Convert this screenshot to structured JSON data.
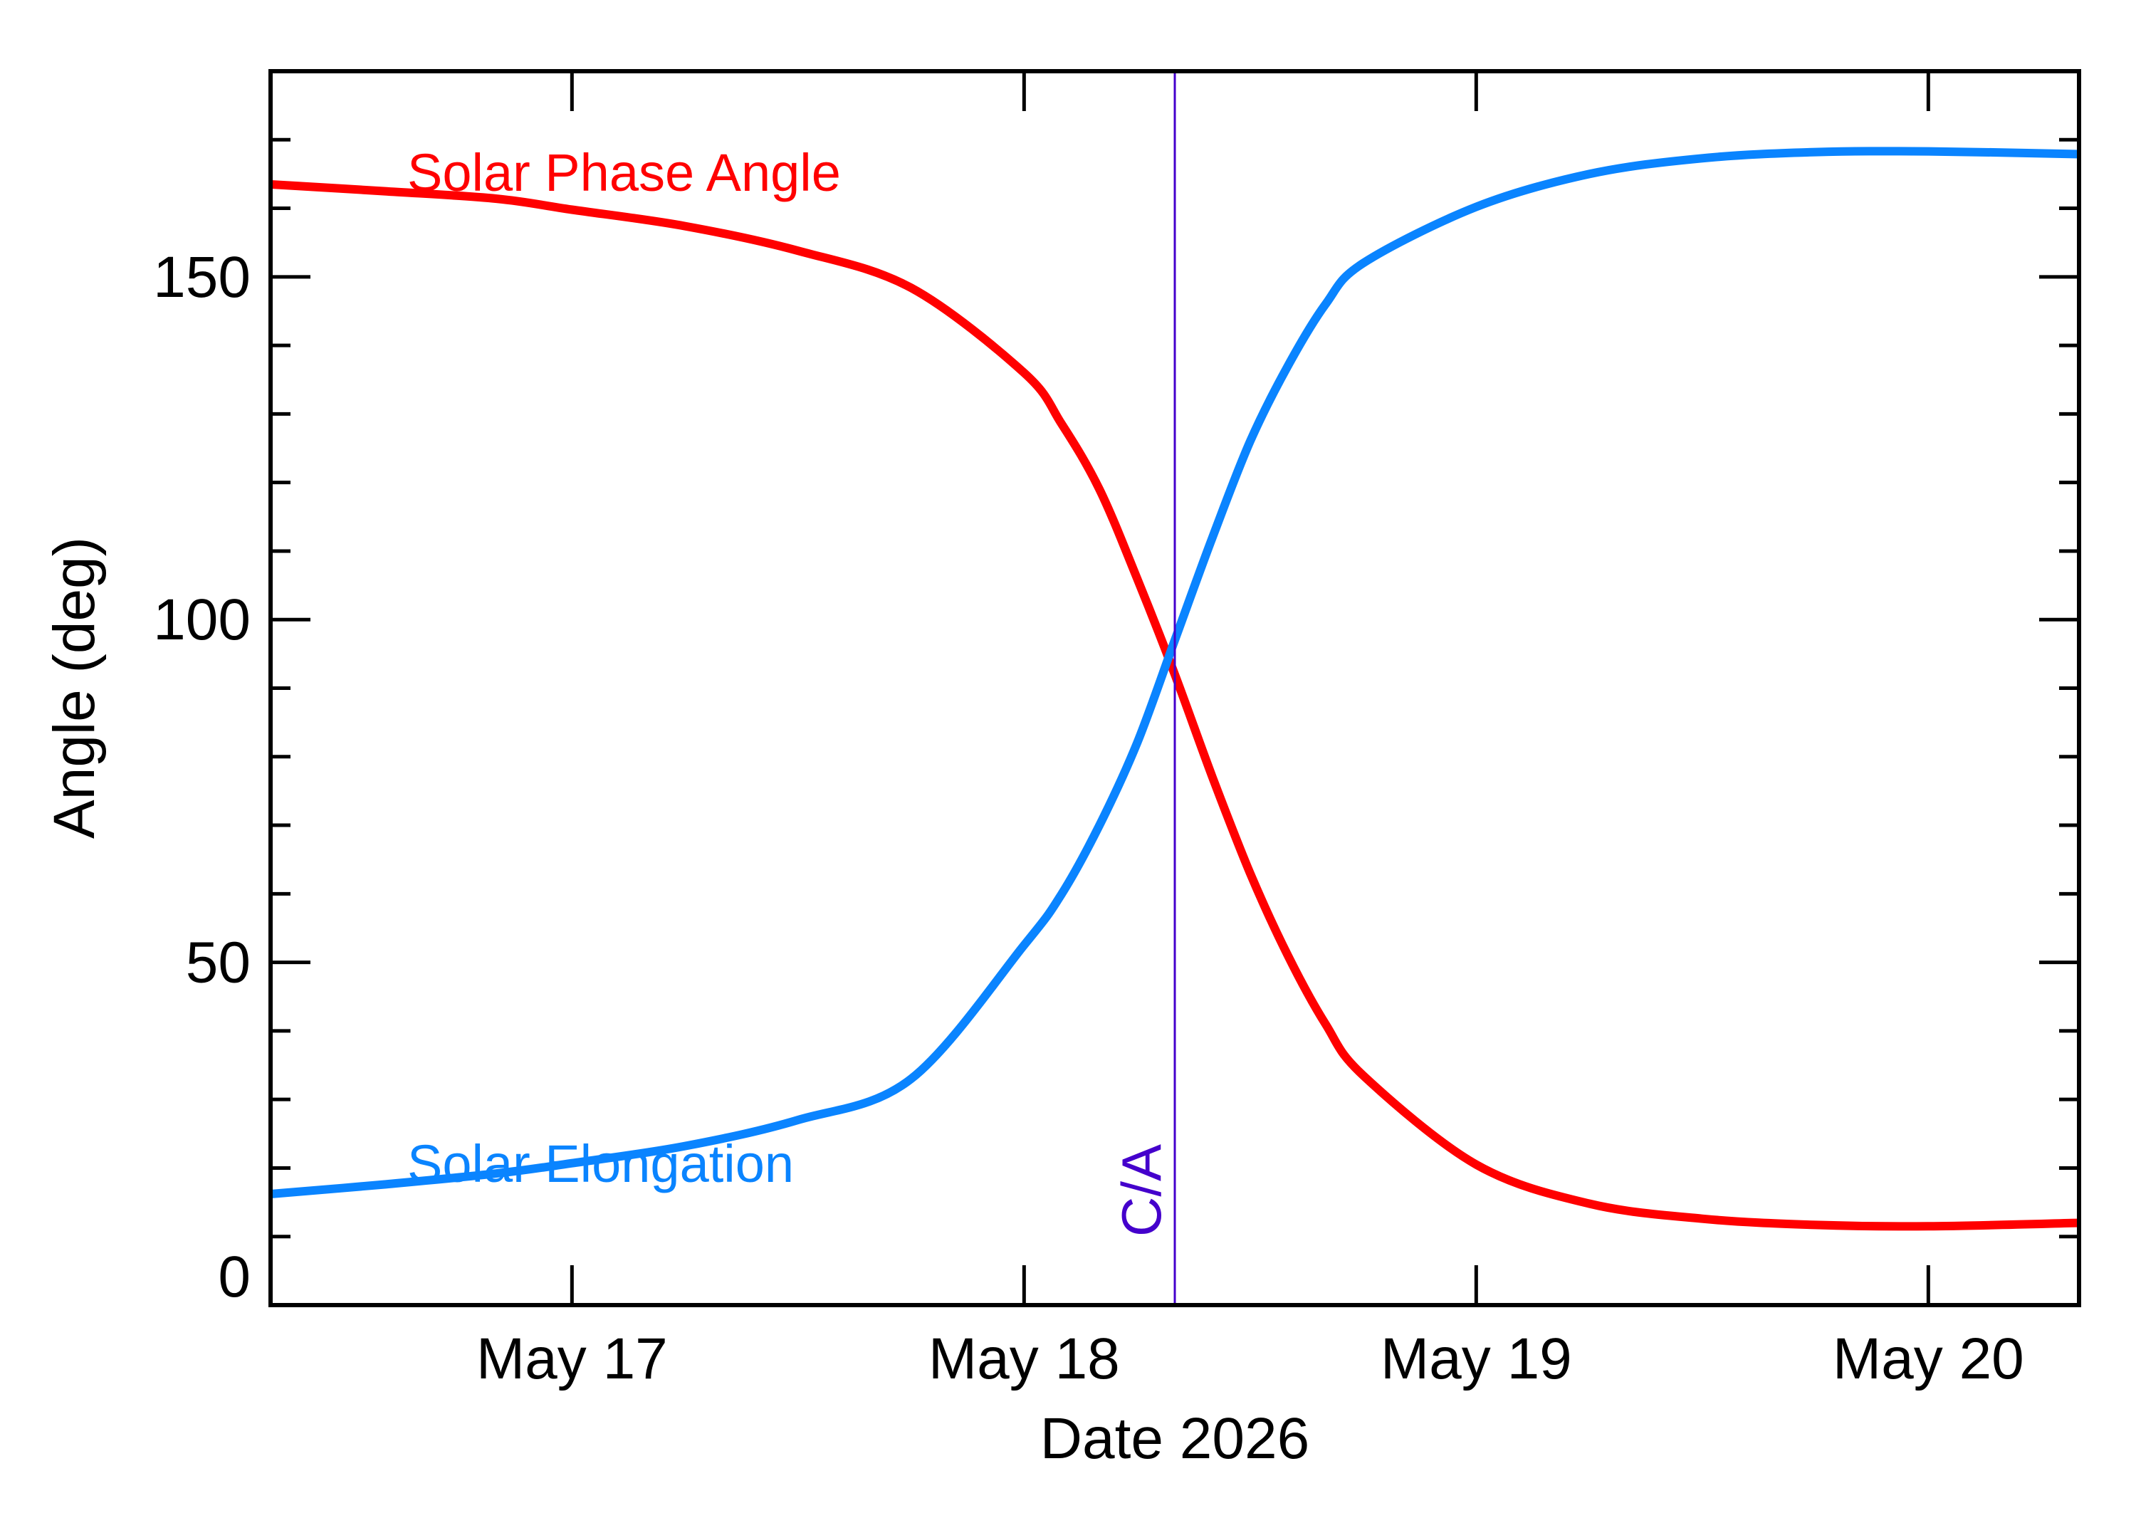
{
  "chart_data": {
    "type": "line",
    "xlabel": "Date 2026",
    "ylabel": "Angle (deg)",
    "x_axis": {
      "type": "date",
      "range": [
        "2026-05-16 08:00",
        "2026-05-20 08:00"
      ],
      "ticks": [
        {
          "date": "2026-05-17 00:00",
          "label": "May 17"
        },
        {
          "date": "2026-05-18 00:00",
          "label": "May 18"
        },
        {
          "date": "2026-05-19 00:00",
          "label": "May 19"
        },
        {
          "date": "2026-05-20 00:00",
          "label": "May 20"
        }
      ]
    },
    "ylim": [
      0,
      180
    ],
    "yticks": [
      {
        "value": 0,
        "label": "0"
      },
      {
        "value": 50,
        "label": "50"
      },
      {
        "value": 100,
        "label": "100"
      },
      {
        "value": 150,
        "label": "150"
      }
    ],
    "grid": false,
    "annotations": [
      {
        "type": "vline",
        "x": "2026-05-18 08:00",
        "label": "C/A",
        "color": "#4400cc"
      }
    ],
    "series": [
      {
        "name": "Solar Phase Angle",
        "color": "#ff0000",
        "points": [
          [
            "2026-05-16 08:00",
            163.5
          ],
          [
            "2026-05-16 14:00",
            162.5
          ],
          [
            "2026-05-16 20:00",
            161.4
          ],
          [
            "2026-05-17 00:00",
            159.8
          ],
          [
            "2026-05-17 06:00",
            157.4
          ],
          [
            "2026-05-17 12:00",
            153.8
          ],
          [
            "2026-05-17 18:00",
            148.4
          ],
          [
            "2026-05-18 00:00",
            136
          ],
          [
            "2026-05-18 02:00",
            128.5
          ],
          [
            "2026-05-18 04:00",
            119
          ],
          [
            "2026-05-18 06:00",
            106
          ],
          [
            "2026-05-18 08:00",
            92
          ],
          [
            "2026-05-18 10:00",
            77
          ],
          [
            "2026-05-18 12:00",
            63
          ],
          [
            "2026-05-18 14:00",
            51
          ],
          [
            "2026-05-18 16:00",
            41
          ],
          [
            "2026-05-18 18:00",
            33.5
          ],
          [
            "2026-05-19 00:00",
            20.5
          ],
          [
            "2026-05-19 06:00",
            14.8
          ],
          [
            "2026-05-19 12:00",
            12.6
          ],
          [
            "2026-05-19 18:00",
            11.7
          ],
          [
            "2026-05-20 00:00",
            11.5
          ],
          [
            "2026-05-20 08:00",
            12
          ]
        ]
      },
      {
        "name": "Solar Elongation",
        "color": "#0a84ff",
        "points": [
          [
            "2026-05-16 08:00",
            16.2
          ],
          [
            "2026-05-16 14:00",
            17.6
          ],
          [
            "2026-05-16 20:00",
            19.2
          ],
          [
            "2026-05-17 00:00",
            20.7
          ],
          [
            "2026-05-17 06:00",
            23.2
          ],
          [
            "2026-05-17 12:00",
            27
          ],
          [
            "2026-05-17 18:00",
            33
          ],
          [
            "2026-05-18 00:00",
            52.5
          ],
          [
            "2026-05-18 02:00",
            60
          ],
          [
            "2026-05-18 04:00",
            70
          ],
          [
            "2026-05-18 06:00",
            82
          ],
          [
            "2026-05-18 08:00",
            97
          ],
          [
            "2026-05-18 10:00",
            112
          ],
          [
            "2026-05-18 12:00",
            126
          ],
          [
            "2026-05-18 14:00",
            137
          ],
          [
            "2026-05-18 16:00",
            146
          ],
          [
            "2026-05-18 18:00",
            152
          ],
          [
            "2026-05-19 00:00",
            160.2
          ],
          [
            "2026-05-19 06:00",
            165
          ],
          [
            "2026-05-19 12:00",
            167.3
          ],
          [
            "2026-05-19 18:00",
            168.2
          ],
          [
            "2026-05-20 00:00",
            168.3
          ],
          [
            "2026-05-20 08:00",
            167.9
          ]
        ]
      }
    ]
  }
}
